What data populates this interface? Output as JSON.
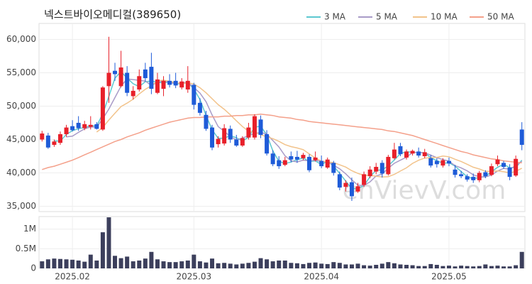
{
  "chart_data": [
    {
      "type": "candlestick",
      "title": "넥스트바이오메디컬(389650)",
      "watermark": "enVievV.com",
      "up_color": "#e8202a",
      "down_color": "#1e5bd8",
      "grid": true,
      "legend": "top-right",
      "ylim": [
        34200,
        62400
      ],
      "yticks": [
        {
          "value": 35000,
          "label": "35,000"
        },
        {
          "value": 40000,
          "label": "40,000"
        },
        {
          "value": 45000,
          "label": "45,000"
        },
        {
          "value": 50000,
          "label": "50,000"
        },
        {
          "value": 55000,
          "label": "55,000"
        },
        {
          "value": 60000,
          "label": "60,000"
        }
      ],
      "open": [
        45000,
        45600,
        44200,
        44500,
        45800,
        47000,
        47500,
        46700,
        46900,
        47300,
        46500,
        53000,
        55300,
        53000,
        55000,
        51500,
        52500,
        55500,
        55900,
        52000,
        52600,
        53800,
        53800,
        52800,
        52500,
        53200,
        50500,
        48700,
        46800,
        44300,
        44400,
        46600,
        45000,
        44100,
        45300,
        45300,
        48000,
        45800,
        42900,
        41900,
        41200,
        42500,
        42400,
        42200,
        42400,
        41900,
        41800,
        40800,
        41500,
        39800,
        37900,
        38600,
        37200,
        38200,
        39500,
        40200,
        41500,
        39800,
        42200,
        44000,
        42300,
        42900,
        43200,
        42500,
        42200,
        41800,
        41100,
        41800,
        40500,
        39800,
        39500,
        39400,
        38900,
        40100,
        39700,
        41300,
        41500,
        40800,
        39600,
        46500
      ],
      "high": [
        46300,
        46000,
        45000,
        46200,
        47200,
        47900,
        48500,
        47800,
        48500,
        47600,
        53000,
        60400,
        56500,
        58300,
        56000,
        53000,
        55500,
        56500,
        58000,
        55000,
        54500,
        54800,
        55000,
        54200,
        56000,
        53500,
        51200,
        49300,
        47200,
        45500,
        47300,
        47100,
        45700,
        45500,
        47500,
        48800,
        48600,
        46400,
        43400,
        42500,
        42400,
        43200,
        43300,
        43000,
        42800,
        43200,
        42600,
        42300,
        41800,
        40200,
        38900,
        39300,
        38500,
        40200,
        41000,
        41500,
        41900,
        42700,
        44500,
        44500,
        43500,
        43500,
        43800,
        43600,
        42700,
        42200,
        42200,
        42300,
        41200,
        40300,
        39800,
        39900,
        40300,
        40400,
        41400,
        42600,
        41800,
        41300,
        42600,
        47600
      ],
      "low": [
        44700,
        43600,
        43900,
        44200,
        45400,
        46200,
        46300,
        46400,
        46500,
        46500,
        46300,
        50500,
        53800,
        52800,
        51500,
        51000,
        52200,
        53700,
        51800,
        51800,
        51500,
        52800,
        52700,
        52500,
        52000,
        49500,
        48600,
        46300,
        43400,
        43800,
        44100,
        44500,
        43900,
        43900,
        45000,
        45000,
        45200,
        42600,
        41000,
        40600,
        41000,
        41600,
        41500,
        41900,
        40100,
        41700,
        40700,
        40600,
        39600,
        37400,
        37200,
        35800,
        37000,
        37900,
        39200,
        39800,
        39300,
        39600,
        42000,
        42500,
        42000,
        42600,
        42300,
        42200,
        40800,
        40800,
        40800,
        41000,
        39300,
        39200,
        38700,
        38500,
        38600,
        39200,
        39500,
        41000,
        40600,
        38900,
        39400,
        43400
      ],
      "close": [
        45900,
        43800,
        44700,
        45800,
        46800,
        46400,
        46700,
        47300,
        47200,
        46600,
        52800,
        55000,
        54800,
        55800,
        52000,
        52300,
        54500,
        54200,
        52600,
        54000,
        53800,
        53200,
        53100,
        53700,
        53800,
        50200,
        49000,
        46600,
        43800,
        45100,
        46700,
        45000,
        44100,
        45200,
        46800,
        48500,
        45700,
        42900,
        41300,
        41000,
        41900,
        42000,
        42000,
        42700,
        40400,
        42300,
        41000,
        42000,
        40000,
        37800,
        38500,
        36500,
        38000,
        39800,
        40500,
        40900,
        39900,
        42400,
        43500,
        42800,
        43200,
        43300,
        42600,
        43100,
        41100,
        41300,
        41900,
        41400,
        39700,
        39500,
        39000,
        38900,
        40000,
        39500,
        41000,
        42000,
        40900,
        39400,
        42100,
        44200
      ],
      "series": [
        {
          "name": "3 MA",
          "color": "#5cc8d0",
          "values": [
            null,
            null,
            44800,
            44767,
            45767,
            46333,
            46633,
            46800,
            47067,
            47033,
            48867,
            51467,
            54200,
            55200,
            54200,
            53367,
            52933,
            53667,
            53767,
            53600,
            53467,
            53667,
            53367,
            53333,
            53533,
            52567,
            51000,
            48600,
            46467,
            45167,
            45200,
            45600,
            45267,
            44767,
            45367,
            46833,
            47000,
            45700,
            43300,
            41733,
            41400,
            41633,
            41967,
            42233,
            41700,
            41800,
            41233,
            41767,
            41000,
            39933,
            38767,
            37600,
            37667,
            38100,
            39433,
            40400,
            40433,
            41067,
            41933,
            42900,
            43167,
            43100,
            43033,
            43000,
            42267,
            41833,
            41433,
            41533,
            41000,
            40200,
            39400,
            39133,
            39300,
            39467,
            40167,
            40833,
            41300,
            40767,
            40800,
            41900
          ]
        },
        {
          "name": "5 MA",
          "color": "#a99bc8",
          "values": [
            null,
            null,
            null,
            null,
            45400,
            45500,
            46080,
            46600,
            46880,
            46840,
            48120,
            49580,
            51280,
            53000,
            54080,
            53980,
            53880,
            53760,
            53120,
            53520,
            53820,
            53560,
            53340,
            53560,
            53520,
            52800,
            51960,
            50660,
            48680,
            46940,
            46240,
            45440,
            44940,
            45220,
            45560,
            45920,
            46060,
            45820,
            44840,
            43880,
            42560,
            41820,
            41640,
            41920,
            41800,
            41880,
            41680,
            41680,
            41140,
            40620,
            39860,
            38960,
            38160,
            38120,
            38660,
            39540,
            39820,
            40700,
            41440,
            41900,
            42360,
            43040,
            43080,
            43000,
            42660,
            42280,
            42000,
            41760,
            41080,
            40760,
            40300,
            39700,
            39420,
            39380,
            39680,
            40280,
            40680,
            40560,
            41080,
            41720
          ]
        },
        {
          "name": "10 MA",
          "color": "#f2c38b",
          "values": [
            null,
            null,
            null,
            null,
            null,
            null,
            null,
            null,
            null,
            46120,
            46810,
            47930,
            48940,
            49940,
            50460,
            51050,
            51830,
            52520,
            53060,
            53800,
            53900,
            53720,
            53550,
            53340,
            53520,
            53310,
            52760,
            52000,
            51120,
            50230,
            49520,
            48700,
            47800,
            46950,
            46250,
            46080,
            45750,
            45380,
            45130,
            44720,
            44240,
            43940,
            43730,
            43480,
            42840,
            42220,
            41750,
            41660,
            41530,
            41210,
            40870,
            40320,
            39920,
            39630,
            39640,
            39500,
            39390,
            39430,
            39780,
            40280,
            40750,
            41430,
            41890,
            42220,
            42280,
            42320,
            42520,
            42420,
            42040,
            41710,
            41290,
            40850,
            40590,
            40230,
            40220,
            40290,
            40190,
            39990,
            40230,
            40700
          ]
        },
        {
          "name": "50 MA",
          "color": "#f4a08a",
          "values": [
            40500,
            40800,
            41000,
            41300,
            41600,
            41900,
            42300,
            42700,
            43100,
            43500,
            43900,
            44300,
            44700,
            45000,
            45400,
            45700,
            46000,
            46400,
            46700,
            47000,
            47300,
            47600,
            47800,
            48000,
            48200,
            48300,
            48300,
            48400,
            48400,
            48400,
            48500,
            48500,
            48600,
            48600,
            48700,
            48700,
            48800,
            48700,
            48600,
            48400,
            48300,
            48200,
            48000,
            47900,
            47700,
            47600,
            47500,
            47400,
            47300,
            47200,
            47100,
            47000,
            46900,
            46800,
            46700,
            46600,
            46500,
            46300,
            46200,
            46000,
            45800,
            45600,
            45300,
            45000,
            44700,
            44400,
            44100,
            43800,
            43500,
            43200,
            43000,
            42700,
            42500,
            42300,
            42100,
            42000,
            41800,
            41700,
            41600,
            41500
          ]
        }
      ]
    },
    {
      "type": "bar",
      "color": "#3c3f5c",
      "grid": true,
      "ylim": [
        0,
        1320000
      ],
      "yticks": [
        0,
        {
          "value": 500000,
          "label": "0.5M"
        },
        {
          "value": 1000000,
          "label": "1M"
        }
      ],
      "categories": [
        null,
        null,
        null,
        null,
        null,
        "2025.02",
        null,
        null,
        null,
        null,
        null,
        null,
        null,
        null,
        null,
        null,
        null,
        null,
        null,
        null,
        null,
        null,
        null,
        null,
        null,
        "2025.03",
        null,
        null,
        null,
        null,
        null,
        null,
        null,
        null,
        null,
        null,
        null,
        null,
        null,
        null,
        null,
        null,
        null,
        null,
        null,
        null,
        "2025.04",
        null,
        null,
        null,
        null,
        null,
        null,
        null,
        null,
        null,
        null,
        null,
        null,
        null,
        null,
        null,
        null,
        null,
        null,
        null,
        null,
        "2025.05",
        null,
        null,
        null,
        null,
        null,
        null,
        null,
        null,
        null,
        null,
        null,
        null
      ],
      "values": [
        180000,
        230000,
        250000,
        240000,
        230000,
        220000,
        200000,
        170000,
        350000,
        200000,
        920000,
        1300000,
        320000,
        260000,
        300000,
        180000,
        200000,
        250000,
        420000,
        230000,
        180000,
        160000,
        160000,
        180000,
        200000,
        350000,
        180000,
        150000,
        250000,
        130000,
        140000,
        120000,
        100000,
        120000,
        140000,
        170000,
        260000,
        230000,
        180000,
        200000,
        200000,
        140000,
        130000,
        110000,
        140000,
        150000,
        120000,
        110000,
        160000,
        140000,
        100000,
        100000,
        120000,
        80000,
        70000,
        90000,
        120000,
        160000,
        130000,
        100000,
        90000,
        80000,
        60000,
        60000,
        110000,
        90000,
        60000,
        70000,
        50000,
        70000,
        60000,
        50000,
        60000,
        100000,
        60000,
        70000,
        50000,
        50000,
        80000,
        420000
      ]
    }
  ]
}
